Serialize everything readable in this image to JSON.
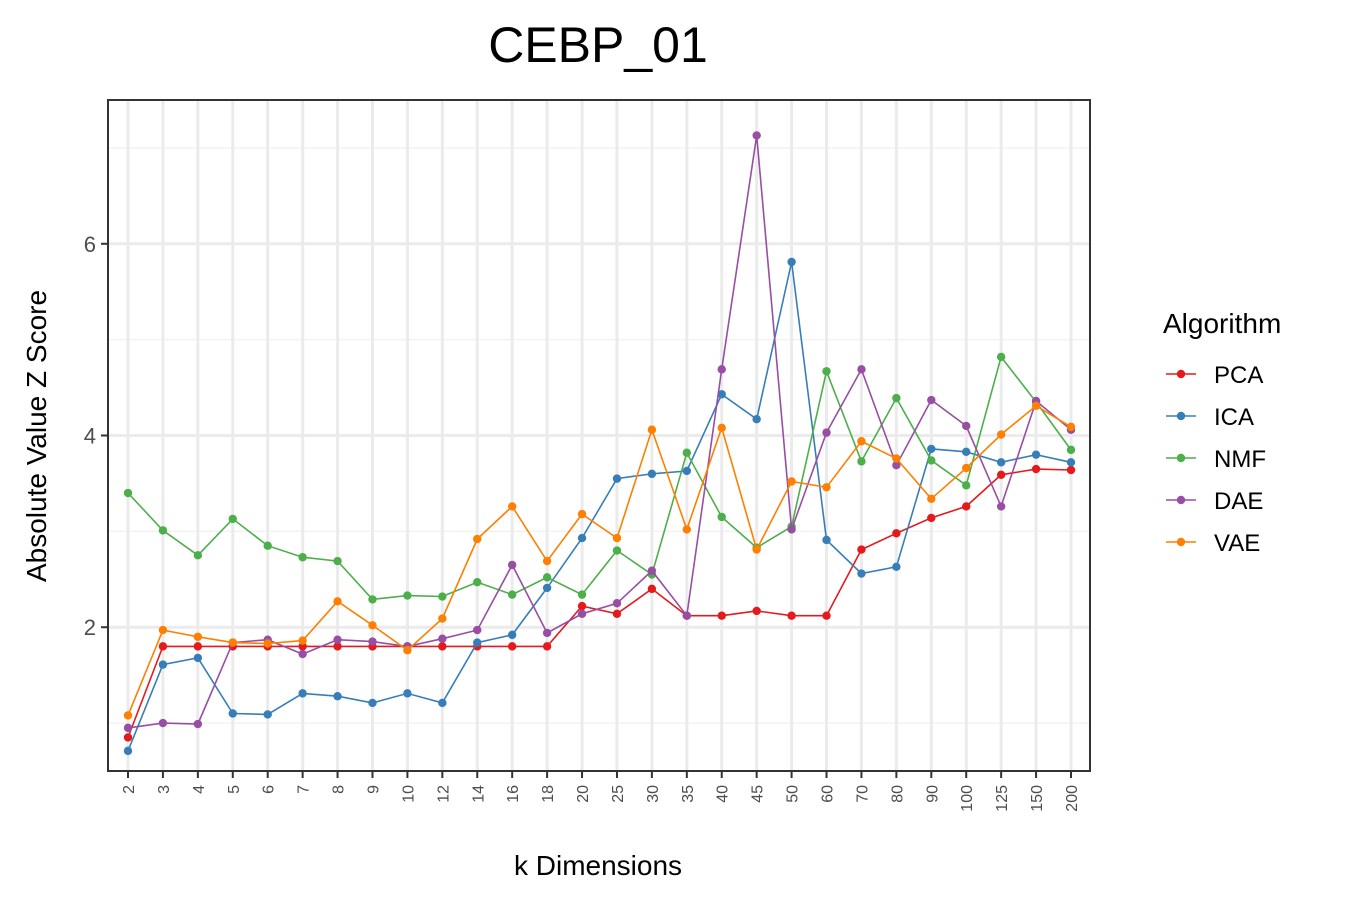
{
  "chart_data": {
    "type": "line",
    "title": "CEBP_01",
    "xlabel": "k Dimensions",
    "ylabel": "Absolute Value Z Score",
    "categories": [
      "2",
      "3",
      "4",
      "5",
      "6",
      "7",
      "8",
      "9",
      "10",
      "12",
      "14",
      "16",
      "18",
      "20",
      "25",
      "30",
      "35",
      "40",
      "45",
      "50",
      "60",
      "70",
      "80",
      "90",
      "100",
      "125",
      "150",
      "200"
    ],
    "ylim": [
      0.5,
      7.5
    ],
    "yticks": [
      2,
      4,
      6
    ],
    "grid": true,
    "legend": {
      "title": "Algorithm",
      "position": "right"
    },
    "series": [
      {
        "name": "PCA",
        "color": "#e41a1c",
        "values": [
          0.85,
          1.8,
          1.8,
          1.8,
          1.8,
          1.8,
          1.8,
          1.8,
          1.8,
          1.8,
          1.8,
          1.8,
          1.8,
          2.22,
          2.14,
          2.4,
          2.12,
          2.12,
          2.17,
          2.12,
          2.12,
          2.81,
          2.98,
          3.14,
          3.26,
          3.59,
          3.65,
          3.64
        ]
      },
      {
        "name": "ICA",
        "color": "#377eb8",
        "values": [
          0.71,
          1.61,
          1.68,
          1.1,
          1.09,
          1.31,
          1.28,
          1.21,
          1.31,
          1.21,
          1.84,
          1.92,
          2.41,
          2.93,
          3.55,
          3.6,
          3.63,
          4.43,
          4.17,
          5.81,
          2.91,
          2.56,
          2.63,
          3.86,
          3.83,
          3.72,
          3.8,
          3.72
        ]
      },
      {
        "name": "NMF",
        "color": "#4daf4a",
        "values": [
          3.4,
          3.01,
          2.75,
          3.13,
          2.85,
          2.73,
          2.69,
          2.29,
          2.33,
          2.32,
          2.47,
          2.34,
          2.52,
          2.34,
          2.8,
          2.55,
          3.82,
          3.15,
          2.83,
          3.05,
          4.67,
          3.73,
          4.39,
          3.74,
          3.48,
          4.82,
          4.35,
          3.85
        ]
      },
      {
        "name": "DAE",
        "color": "#984ea3",
        "values": [
          0.95,
          1.0,
          0.99,
          1.84,
          1.87,
          1.72,
          1.87,
          1.85,
          1.8,
          1.88,
          1.97,
          2.65,
          1.94,
          2.14,
          2.25,
          2.59,
          2.12,
          4.69,
          7.13,
          3.02,
          4.03,
          4.69,
          3.69,
          4.37,
          4.1,
          3.26,
          4.36,
          4.06
        ]
      },
      {
        "name": "VAE",
        "color": "#ff7f00",
        "values": [
          1.08,
          1.97,
          1.9,
          1.84,
          1.83,
          1.86,
          2.27,
          2.02,
          1.76,
          2.09,
          2.92,
          3.26,
          2.69,
          3.18,
          2.93,
          4.06,
          3.02,
          4.08,
          2.81,
          3.52,
          3.46,
          3.94,
          3.76,
          3.34,
          3.66,
          4.01,
          4.31,
          4.09
        ]
      }
    ]
  }
}
